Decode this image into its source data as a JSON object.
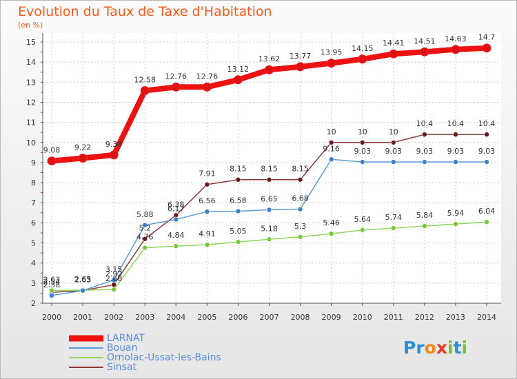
{
  "title": "Evolution du Taux de Taxe d'Habitation",
  "subtitle": "(en %)",
  "logo": {
    "text": "Proxiti",
    "letters": [
      "P",
      "r",
      "o",
      "x",
      "i",
      "t",
      "i"
    ],
    "colors": [
      "#2a8fd6",
      "#2a8fd6",
      "#f08a1a",
      "#e23a2a",
      "#7cbf30",
      "#2a8fd6",
      "#7cbf30"
    ]
  },
  "chart_data": {
    "type": "line",
    "x": [
      "2000",
      "2001",
      "2002",
      "2003",
      "2004",
      "2005",
      "2006",
      "2007",
      "2008",
      "2009",
      "2010",
      "2011",
      "2012",
      "2013",
      "2014"
    ],
    "ylim": [
      2,
      15
    ],
    "yticks": [
      "2",
      "3",
      "4",
      "5",
      "6",
      "7",
      "8",
      "9",
      "10",
      "11",
      "12",
      "13",
      "14",
      "15"
    ],
    "grid": true,
    "legend_position": "bottom-left",
    "series": [
      {
        "name": "LARNAT",
        "color": "#ee1111",
        "marker_color": "#dd1111",
        "values": [
          9.08,
          9.22,
          9.38,
          12.58,
          12.76,
          12.76,
          13.12,
          13.62,
          13.77,
          13.95,
          14.15,
          14.41,
          14.51,
          14.63,
          14.7
        ],
        "labels": [
          "9.08",
          "9.22",
          "9.38",
          "12.58",
          "12.76",
          "12.76",
          "13.12",
          "13.62",
          "13.77",
          "13.95",
          "14.15",
          "14.41",
          "14.51",
          "14.63",
          "14.7"
        ]
      },
      {
        "name": "Bouan",
        "color": "#5a9ad6",
        "marker_color": "#3a82cc",
        "values": [
          2.38,
          2.63,
          3.15,
          5.88,
          6.17,
          6.56,
          6.58,
          6.65,
          6.68,
          9.16,
          9.03,
          9.03,
          9.03,
          9.03,
          9.03
        ],
        "labels": [
          "2.38",
          "2.63",
          "3.15",
          "5.88",
          "6.17",
          "6.56",
          "6.58",
          "6.65",
          "6.68",
          "9.16",
          "9.03",
          "9.03",
          "9.03",
          "9.03",
          "9.03"
        ]
      },
      {
        "name": "Ornolac-Ussat-les-Bains",
        "color": "#8fd65a",
        "marker_color": "#78c83e",
        "values": [
          2.63,
          2.65,
          2.68,
          4.76,
          4.84,
          4.91,
          5.05,
          5.18,
          5.3,
          5.46,
          5.64,
          5.74,
          5.84,
          5.94,
          6.04
        ],
        "labels": [
          "2.63",
          "2.65",
          "2.68",
          "4.76",
          "4.84",
          "4.91",
          "5.05",
          "5.18",
          "5.3",
          "5.46",
          "5.64",
          "5.74",
          "5.84",
          "5.94",
          "6.04"
        ]
      },
      {
        "name": "Sinsat",
        "color": "#8b3a3a",
        "marker_color": "#6a1a1a",
        "values": [
          2.54,
          2.63,
          2.92,
          5.2,
          6.38,
          7.91,
          8.15,
          8.15,
          8.15,
          10,
          10,
          10,
          10.4,
          10.4,
          10.4
        ],
        "labels": [
          "2.54",
          "2.63",
          "2.92",
          "5.2",
          "6.38",
          "7.91",
          "8.15",
          "8.15",
          "8.15",
          "10",
          "10",
          "10",
          "10.4",
          "10.4",
          "10.4"
        ]
      }
    ]
  }
}
